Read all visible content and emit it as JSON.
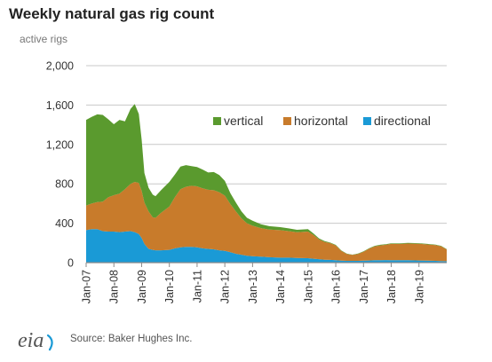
{
  "title": "Weekly natural gas rig count",
  "subtitle": "active rigs",
  "source": "Source: Baker Hughes Inc.",
  "logo_text": "eia",
  "colors": {
    "directional": "#1a9ad6",
    "horizontal": "#c87b2b",
    "vertical": "#5a9a2e",
    "grid": "#c8c8c8",
    "axis": "#8a8a8a"
  },
  "chart_data": {
    "type": "area",
    "stacked": true,
    "title": "Weekly natural gas rig count",
    "ylabel": "active rigs",
    "ylim": [
      0,
      2000
    ],
    "yticks": [
      "0",
      "400",
      "800",
      "1,200",
      "1,600",
      "2,000"
    ],
    "ytick_values": [
      0,
      400,
      800,
      1200,
      1600,
      2000
    ],
    "xlim": [
      2007.0,
      2020.0
    ],
    "xticks": [
      "Jan-07",
      "Jan-08",
      "Jan-09",
      "Jan-10",
      "Jan-11",
      "Jan-12",
      "Jan-13",
      "Jan-14",
      "Jan-15",
      "Jan-16",
      "Jan-17",
      "Jan-18",
      "Jan-19"
    ],
    "xtick_values": [
      2007,
      2008,
      2009,
      2010,
      2011,
      2012,
      2013,
      2014,
      2015,
      2016,
      2017,
      2018,
      2019
    ],
    "legend_position": "top-right",
    "x": [
      2007.0,
      2007.2,
      2007.4,
      2007.6,
      2007.8,
      2008.0,
      2008.2,
      2008.4,
      2008.6,
      2008.75,
      2008.9,
      2009.0,
      2009.1,
      2009.25,
      2009.4,
      2009.5,
      2009.7,
      2010.0,
      2010.2,
      2010.4,
      2010.6,
      2010.8,
      2011.0,
      2011.2,
      2011.4,
      2011.6,
      2011.8,
      2012.0,
      2012.2,
      2012.4,
      2012.6,
      2012.8,
      2013.0,
      2013.3,
      2013.6,
      2014.0,
      2014.3,
      2014.6,
      2015.0,
      2015.2,
      2015.4,
      2015.6,
      2015.8,
      2016.0,
      2016.2,
      2016.4,
      2016.6,
      2016.8,
      2017.0,
      2017.2,
      2017.4,
      2017.6,
      2017.8,
      2018.0,
      2018.3,
      2018.6,
      2019.0,
      2019.3,
      2019.6,
      2019.8,
      2020.0
    ],
    "series": [
      {
        "name": "directional",
        "values": [
          330,
          340,
          340,
          320,
          315,
          315,
          310,
          315,
          320,
          310,
          290,
          250,
          190,
          140,
          130,
          125,
          125,
          130,
          145,
          155,
          160,
          160,
          155,
          145,
          140,
          135,
          125,
          120,
          105,
          90,
          80,
          70,
          65,
          60,
          55,
          50,
          50,
          48,
          45,
          40,
          35,
          30,
          28,
          25,
          20,
          18,
          18,
          18,
          20,
          22,
          24,
          25,
          26,
          25,
          25,
          24,
          22,
          20,
          18,
          16,
          14
        ]
      },
      {
        "name": "horizontal",
        "values": [
          250,
          260,
          275,
          300,
          350,
          370,
          390,
          430,
          480,
          510,
          520,
          480,
          420,
          380,
          330,
          330,
          380,
          440,
          520,
          590,
          610,
          620,
          620,
          610,
          600,
          600,
          590,
          560,
          490,
          430,
          370,
          330,
          310,
          290,
          280,
          280,
          270,
          260,
          270,
          240,
          200,
          180,
          170,
          150,
          100,
          70,
          60,
          70,
          90,
          120,
          140,
          150,
          155,
          165,
          165,
          170,
          170,
          165,
          160,
          150,
          120
        ]
      },
      {
        "name": "vertical",
        "values": [
          870,
          880,
          890,
          880,
          790,
          720,
          750,
          690,
          760,
          790,
          700,
          520,
          300,
          240,
          230,
          220,
          230,
          250,
          230,
          230,
          220,
          200,
          195,
          190,
          175,
          185,
          175,
          150,
          110,
          90,
          70,
          55,
          50,
          40,
          35,
          30,
          28,
          25,
          25,
          15,
          10,
          8,
          6,
          5,
          4,
          3,
          3,
          4,
          5,
          5,
          6,
          6,
          6,
          6,
          6,
          6,
          5,
          5,
          4,
          4,
          3
        ]
      }
    ],
    "legend": [
      "vertical",
      "horizontal",
      "directional"
    ]
  }
}
